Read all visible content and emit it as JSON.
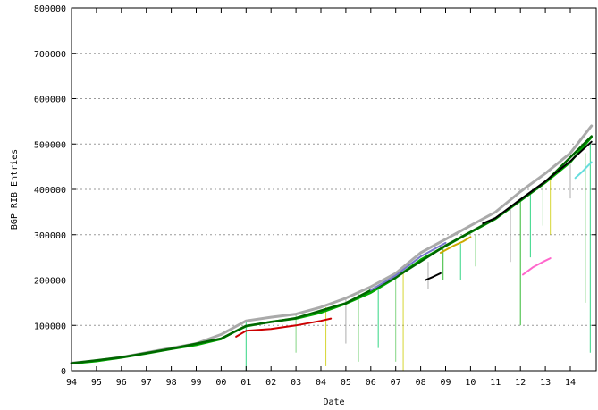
{
  "chart_data": {
    "type": "scatter",
    "title": "",
    "xlabel": "Date",
    "ylabel": "BGP RIB Entries",
    "x_ticks": [
      "94",
      "95",
      "96",
      "97",
      "98",
      "99",
      "00",
      "01",
      "02",
      "03",
      "04",
      "05",
      "06",
      "07",
      "08",
      "09",
      "10",
      "11",
      "12",
      "13",
      "14"
    ],
    "xlim": [
      1994,
      2014.9
    ],
    "ylim": [
      0,
      800000
    ],
    "y_ticks": [
      0,
      100000,
      200000,
      300000,
      400000,
      500000,
      600000,
      700000,
      800000
    ],
    "grid": true,
    "legend": "none",
    "series": [
      {
        "color": "#aaaaaa",
        "points": [
          [
            1994.0,
            17000
          ],
          [
            1995.0,
            22000
          ],
          [
            1996.0,
            30000
          ],
          [
            1997.0,
            40000
          ],
          [
            1998.0,
            50000
          ],
          [
            1999.0,
            60000
          ],
          [
            2000.0,
            80000
          ],
          [
            2001.0,
            110000
          ],
          [
            2002.0,
            118000
          ],
          [
            2003.0,
            125000
          ],
          [
            2004.0,
            140000
          ],
          [
            2005.0,
            160000
          ],
          [
            2006.0,
            185000
          ],
          [
            2007.0,
            215000
          ],
          [
            2008.0,
            260000
          ],
          [
            2009.0,
            290000
          ],
          [
            2010.0,
            320000
          ],
          [
            2011.0,
            350000
          ],
          [
            2012.0,
            395000
          ],
          [
            2013.0,
            435000
          ],
          [
            2014.0,
            480000
          ],
          [
            2014.85,
            540000
          ]
        ]
      },
      {
        "color": "#00aa00",
        "points": [
          [
            1994.0,
            16000
          ],
          [
            1995.0,
            21000
          ],
          [
            1996.0,
            29000
          ],
          [
            1997.0,
            38000
          ],
          [
            1998.0,
            48000
          ],
          [
            1999.0,
            57000
          ],
          [
            2000.0,
            70000
          ],
          [
            2000.5,
            85000
          ],
          [
            2001.0,
            98000
          ],
          [
            2002.0,
            108000
          ],
          [
            2003.0,
            115000
          ],
          [
            2004.0,
            128000
          ],
          [
            2005.0,
            148000
          ],
          [
            2006.0,
            172000
          ],
          [
            2007.0,
            205000
          ],
          [
            2008.0,
            245000
          ],
          [
            2009.0,
            275000
          ],
          [
            2010.0,
            305000
          ],
          [
            2011.0,
            335000
          ],
          [
            2012.0,
            375000
          ],
          [
            2013.0,
            415000
          ],
          [
            2014.0,
            460000
          ],
          [
            2014.85,
            515000
          ]
        ]
      },
      {
        "color": "#006600",
        "points": [
          [
            1994.0,
            16500
          ],
          [
            1996.0,
            29500
          ],
          [
            1998.0,
            48500
          ],
          [
            2000.0,
            71000
          ],
          [
            2001.0,
            99000
          ],
          [
            2003.0,
            116000
          ],
          [
            2005.0,
            149000
          ],
          [
            2007.0,
            206000
          ],
          [
            2009.0,
            276000
          ],
          [
            2011.0,
            336000
          ],
          [
            2013.0,
            416000
          ],
          [
            2014.85,
            517000
          ]
        ]
      },
      {
        "color": "#000000",
        "points": [
          [
            2010.5,
            325000
          ],
          [
            2011.0,
            337000
          ],
          [
            2012.0,
            378000
          ],
          [
            2013.0,
            418000
          ],
          [
            2014.0,
            462000
          ],
          [
            2014.85,
            505000
          ]
        ]
      },
      {
        "color": "#cc0000",
        "points": [
          [
            2000.6,
            75000
          ],
          [
            2001.0,
            88000
          ],
          [
            2002.0,
            92000
          ],
          [
            2003.0,
            100000
          ],
          [
            2004.0,
            110000
          ],
          [
            2004.4,
            115000
          ]
        ]
      },
      {
        "color": "#ff66cc",
        "points": [
          [
            2012.1,
            212000
          ],
          [
            2012.5,
            228000
          ],
          [
            2012.9,
            240000
          ],
          [
            2013.2,
            248000
          ]
        ]
      },
      {
        "color": "#66dddd",
        "points": [
          [
            2014.2,
            425000
          ],
          [
            2014.5,
            440000
          ],
          [
            2014.85,
            460000
          ]
        ]
      },
      {
        "color": "#000000",
        "points": [
          [
            2008.2,
            200000
          ],
          [
            2008.5,
            207000
          ],
          [
            2008.8,
            215000
          ]
        ]
      },
      {
        "color": "#ccaa00",
        "points": [
          [
            2008.8,
            260000
          ],
          [
            2009.3,
            275000
          ],
          [
            2009.7,
            285000
          ],
          [
            2010.0,
            295000
          ]
        ]
      },
      {
        "color": "#7777cc",
        "points": [
          [
            2006.0,
            178000
          ],
          [
            2007.0,
            210000
          ],
          [
            2008.0,
            252000
          ],
          [
            2009.0,
            282000
          ]
        ]
      }
    ],
    "drops": [
      [
        2001.0,
        110000,
        0
      ],
      [
        2003.0,
        125000,
        40000
      ],
      [
        2004.2,
        140000,
        10000
      ],
      [
        2005.0,
        160000,
        60000
      ],
      [
        2005.5,
        170000,
        20000
      ],
      [
        2006.3,
        180000,
        50000
      ],
      [
        2007.0,
        205000,
        20000
      ],
      [
        2007.3,
        215000,
        0
      ],
      [
        2008.3,
        240000,
        180000
      ],
      [
        2008.9,
        270000,
        200000
      ],
      [
        2009.6,
        280000,
        200000
      ],
      [
        2010.2,
        300000,
        230000
      ],
      [
        2010.9,
        330000,
        160000
      ],
      [
        2011.6,
        360000,
        240000
      ],
      [
        2012.0,
        380000,
        100000
      ],
      [
        2012.4,
        395000,
        250000
      ],
      [
        2012.9,
        410000,
        320000
      ],
      [
        2013.2,
        420000,
        300000
      ],
      [
        2014.0,
        460000,
        380000
      ],
      [
        2014.6,
        480000,
        150000
      ],
      [
        2014.8,
        500000,
        40000
      ]
    ]
  }
}
